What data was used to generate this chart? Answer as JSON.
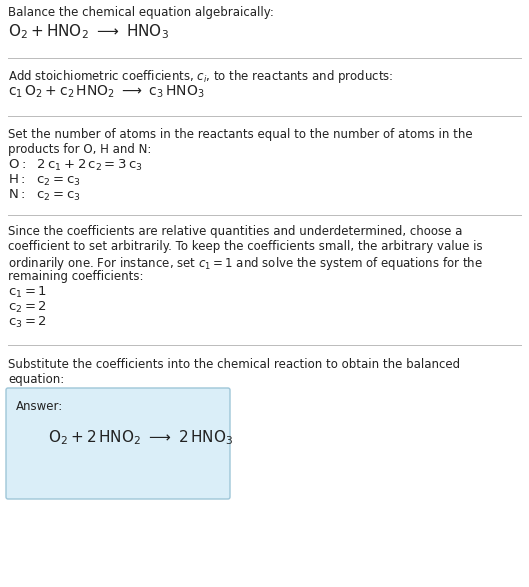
{
  "title_line1": "Balance the chemical equation algebraically:",
  "section2_intro": "Add stoichiometric coefficients, $c_i$, to the reactants and products:",
  "section3_intro_line1": "Set the number of atoms in the reactants equal to the number of atoms in the",
  "section3_intro_line2": "products for O, H and N:",
  "section4_intro_line1": "Since the coefficients are relative quantities and underdetermined, choose a",
  "section4_intro_line2": "coefficient to set arbitrarily. To keep the coefficients small, the arbitrary value is",
  "section4_intro_line3": "ordinarily one. For instance, set $c_1 = 1$ and solve the system of equations for the",
  "section4_intro_line4": "remaining coefficients:",
  "section5_intro_line1": "Substitute the coefficients into the chemical reaction to obtain the balanced",
  "section5_intro_line2": "equation:",
  "answer_label": "Answer:",
  "bg_color": "#ffffff",
  "text_color": "#222222",
  "box_facecolor": "#daeef8",
  "box_edgecolor": "#9ec6d8",
  "divider_color": "#bbbbbb",
  "fs_body": 8.5,
  "fs_math": 9.5
}
